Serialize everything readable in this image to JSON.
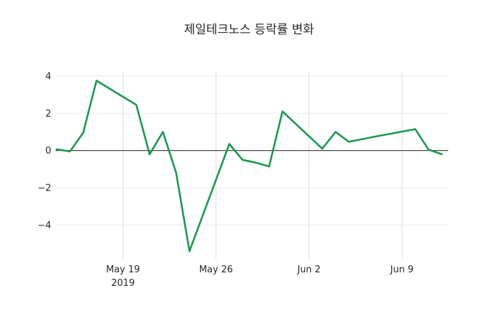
{
  "chart_data": {
    "type": "line",
    "title": "제일테크노스 등락률 변화",
    "x_axis": {
      "ticks": [
        {
          "date": "2019-05-19",
          "label": "May 19",
          "sublabel": "2019"
        },
        {
          "date": "2019-05-26",
          "label": "May 26",
          "sublabel": ""
        },
        {
          "date": "2019-06-02",
          "label": "Jun 2",
          "sublabel": ""
        },
        {
          "date": "2019-06-09",
          "label": "Jun 9",
          "sublabel": ""
        }
      ]
    },
    "y_axis": {
      "ticks": [
        4,
        2,
        0,
        -2,
        -4
      ],
      "range": [
        -5.9,
        4.45
      ]
    },
    "grid": true,
    "zero_line": true,
    "legend": false,
    "colors": {
      "line": "#1a9850",
      "grid": "#e8e8e8",
      "x_grid": "#dcdcdc",
      "zero_line": "#333333",
      "text": "#262626"
    },
    "series": [
      {
        "points": [
          {
            "date": "2019-05-14",
            "value": 0.07
          },
          {
            "date": "2019-05-15",
            "value": -0.05
          },
          {
            "date": "2019-05-16",
            "value": 0.95
          },
          {
            "date": "2019-05-17",
            "value": 3.75
          },
          {
            "date": "2019-05-20",
            "value": 2.45
          },
          {
            "date": "2019-05-21",
            "value": -0.2
          },
          {
            "date": "2019-05-22",
            "value": 1.0
          },
          {
            "date": "2019-05-23",
            "value": -1.2
          },
          {
            "date": "2019-05-24",
            "value": -5.4
          },
          {
            "date": "2019-05-27",
            "value": 0.35
          },
          {
            "date": "2019-05-28",
            "value": -0.5
          },
          {
            "date": "2019-05-29",
            "value": -0.65
          },
          {
            "date": "2019-05-30",
            "value": -0.85
          },
          {
            "date": "2019-05-31",
            "value": 2.1
          },
          {
            "date": "2019-06-03",
            "value": 0.1
          },
          {
            "date": "2019-06-04",
            "value": 1.0
          },
          {
            "date": "2019-06-05",
            "value": 0.47
          },
          {
            "date": "2019-06-07",
            "value": 0.75
          },
          {
            "date": "2019-06-10",
            "value": 1.15
          },
          {
            "date": "2019-06-11",
            "value": 0.05
          },
          {
            "date": "2019-06-12",
            "value": -0.2
          }
        ]
      }
    ]
  }
}
